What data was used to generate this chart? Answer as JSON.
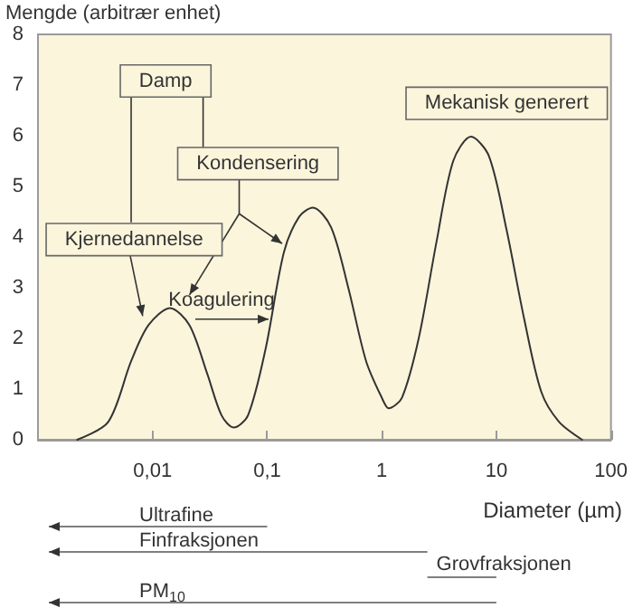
{
  "chart_data": {
    "type": "line",
    "ylabel": "Mengde (arbitrær enhet)",
    "xlabel": "Diameter (µm)",
    "log": "x",
    "x": [
      0.0022,
      0.0041,
      0.0065,
      0.0092,
      0.0142,
      0.021,
      0.03,
      0.04,
      0.051,
      0.068,
      0.097,
      0.14,
      0.19,
      0.25,
      0.36,
      0.51,
      0.73,
      1.0,
      1.15,
      1.5,
      2.1,
      3.0,
      4.2,
      6.0,
      8.6,
      12.2,
      17.5,
      24.6,
      35,
      56
    ],
    "series": [
      {
        "color": "#333333",
        "values": [
          0,
          0.35,
          1.55,
          2.26,
          2.6,
          2.26,
          1.3,
          0.48,
          0.24,
          0.48,
          1.8,
          3.7,
          4.4,
          4.58,
          4.2,
          3.0,
          1.55,
          0.83,
          0.62,
          0.83,
          2.0,
          3.9,
          5.5,
          5.98,
          5.6,
          4.17,
          2.38,
          0.95,
          0.36,
          0
        ]
      }
    ],
    "xlim": [
      0.001,
      100
    ],
    "xticks": [
      {
        "value": 0.01,
        "label": "0,01"
      },
      {
        "value": 0.1,
        "label": "0,1"
      },
      1,
      10,
      100
    ],
    "ylim": [
      0,
      8
    ],
    "yticks": [
      0,
      1,
      2,
      3,
      4,
      5,
      6,
      7,
      8
    ],
    "grid": false,
    "marker": "none",
    "annotations": [
      "Damp",
      "Kondensering",
      "Kjernedannelse",
      "Koagulering",
      "Mekanisk generert",
      "Ultrafine",
      "Finfraksjonen",
      "Grovfraksjonen",
      "PM$_{10}$"
    ]
  }
}
